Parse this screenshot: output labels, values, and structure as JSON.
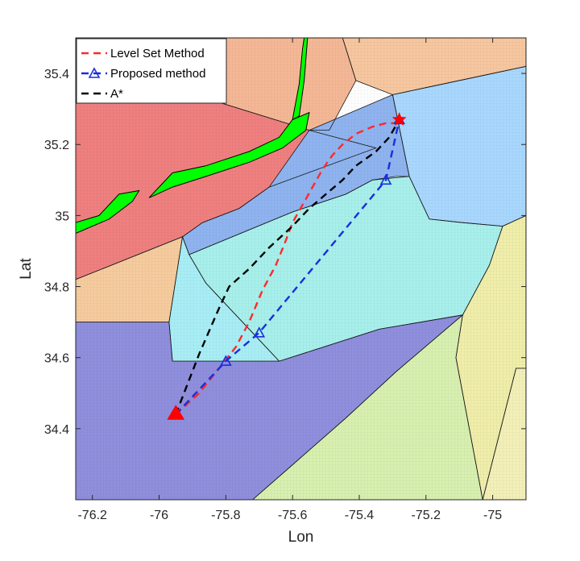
{
  "chart_data": {
    "type": "line",
    "title": "",
    "xlabel": "Lon",
    "ylabel": "Lat",
    "xlim": [
      -76.25,
      -74.9
    ],
    "ylim": [
      34.2,
      35.5
    ],
    "xticks": [
      -76.2,
      -76,
      -75.8,
      -75.6,
      -75.4,
      -75.2,
      -75
    ],
    "yticks": [
      34.4,
      34.6,
      34.8,
      35,
      35.2,
      35.4
    ],
    "xtick_labels": [
      "-76.2",
      "-76",
      "-75.8",
      "-75.6",
      "-75.4",
      "-75.2",
      "-75"
    ],
    "ytick_labels": [
      "34.4",
      "34.6",
      "34.8",
      "35",
      "35.2",
      "35.4"
    ],
    "legend_position": "top-left",
    "start": {
      "x": -75.95,
      "y": 34.44,
      "marker": "triangle",
      "color": "#ff0000"
    },
    "goal": {
      "x": -75.28,
      "y": 35.27,
      "marker": "star",
      "color": "#ff0000"
    },
    "series": [
      {
        "name": "Level Set Method",
        "color": "#ff2a2a",
        "marker": "none",
        "x": [
          -75.95,
          -75.88,
          -75.82,
          -75.77,
          -75.73,
          -75.69,
          -75.65,
          -75.62,
          -75.6,
          -75.57,
          -75.54,
          -75.51,
          -75.48,
          -75.45,
          -75.41,
          -75.36,
          -75.32,
          -75.29,
          -75.28
        ],
        "y": [
          34.44,
          34.5,
          34.57,
          34.63,
          34.7,
          34.79,
          34.86,
          34.93,
          34.98,
          35.03,
          35.08,
          35.13,
          35.17,
          35.2,
          35.23,
          35.25,
          35.26,
          35.26,
          35.27
        ]
      },
      {
        "name": "Proposed method",
        "color": "#1a2edb",
        "marker": "triangle",
        "x": [
          -75.95,
          -75.8,
          -75.7,
          -75.32,
          -75.28
        ],
        "y": [
          34.44,
          34.59,
          34.67,
          35.1,
          35.27
        ]
      },
      {
        "name": "A*",
        "color": "#000000",
        "marker": "none",
        "x": [
          -75.95,
          -75.88,
          -75.82,
          -75.79,
          -75.73,
          -75.67,
          -75.6,
          -75.55,
          -75.5,
          -75.45,
          -75.41,
          -75.38,
          -75.35,
          -75.31,
          -75.28
        ],
        "y": [
          34.44,
          34.61,
          34.74,
          34.8,
          34.85,
          34.91,
          34.97,
          35.02,
          35.06,
          35.1,
          35.14,
          35.16,
          35.18,
          35.22,
          35.27
        ]
      }
    ],
    "regions": [
      {
        "color": "#f08080",
        "points": [
          [
            -76.25,
            35.5
          ],
          [
            -75.88,
            35.5
          ],
          [
            -75.86,
            35.33
          ],
          [
            -75.55,
            35.24
          ],
          [
            -75.35,
            35.19
          ],
          [
            -75.67,
            35.08
          ],
          [
            -75.76,
            35.02
          ],
          [
            -75.87,
            34.98
          ],
          [
            -75.93,
            34.94
          ],
          [
            -76.25,
            34.82
          ]
        ]
      },
      {
        "color": "#f5b896",
        "points": [
          [
            -75.88,
            35.5
          ],
          [
            -75.45,
            35.5
          ],
          [
            -75.41,
            35.38
          ],
          [
            -75.49,
            35.24
          ],
          [
            -75.55,
            35.24
          ],
          [
            -75.86,
            35.33
          ]
        ]
      },
      {
        "color": "#f7c7a0",
        "points": [
          [
            -75.45,
            35.5
          ],
          [
            -74.9,
            35.5
          ],
          [
            -74.9,
            35.42
          ],
          [
            -75.2,
            35.36
          ],
          [
            -75.3,
            35.34
          ],
          [
            -75.41,
            35.38
          ]
        ]
      },
      {
        "color": "#f6cc9e",
        "points": [
          [
            -76.25,
            34.82
          ],
          [
            -75.93,
            34.94
          ],
          [
            -75.97,
            34.7
          ],
          [
            -76.25,
            34.7
          ]
        ]
      },
      {
        "color": "#8fb4f0",
        "points": [
          [
            -75.3,
            35.34
          ],
          [
            -75.55,
            35.24
          ],
          [
            -75.67,
            35.08
          ],
          [
            -75.76,
            35.02
          ],
          [
            -75.87,
            34.98
          ],
          [
            -75.93,
            34.94
          ],
          [
            -75.91,
            34.89
          ],
          [
            -75.6,
            35.01
          ],
          [
            -75.44,
            35.06
          ],
          [
            -75.36,
            35.1
          ],
          [
            -75.29,
            35.11
          ],
          [
            -75.25,
            35.11
          ]
        ]
      },
      {
        "color": "#a9d8ff",
        "points": [
          [
            -74.9,
            35.42
          ],
          [
            -75.2,
            35.36
          ],
          [
            -75.3,
            35.34
          ],
          [
            -75.25,
            35.11
          ],
          [
            -75.19,
            34.99
          ],
          [
            -75.09,
            34.98
          ],
          [
            -74.97,
            34.97
          ],
          [
            -74.9,
            35.0
          ]
        ]
      },
      {
        "color": "#a8f0ec",
        "points": [
          [
            -75.25,
            35.11
          ],
          [
            -75.36,
            35.1
          ],
          [
            -75.44,
            35.06
          ],
          [
            -75.6,
            35.01
          ],
          [
            -75.91,
            34.89
          ],
          [
            -75.86,
            34.81
          ],
          [
            -75.81,
            34.76
          ],
          [
            -75.72,
            34.67
          ],
          [
            -75.64,
            34.59
          ],
          [
            -75.54,
            34.62
          ],
          [
            -75.34,
            34.68
          ],
          [
            -75.09,
            34.72
          ],
          [
            -75.01,
            34.86
          ],
          [
            -74.97,
            34.97
          ],
          [
            -75.09,
            34.98
          ],
          [
            -75.19,
            34.99
          ]
        ]
      },
      {
        "color": "#a9eef6",
        "points": [
          [
            -75.93,
            34.94
          ],
          [
            -75.91,
            34.89
          ],
          [
            -75.86,
            34.81
          ],
          [
            -75.81,
            34.76
          ],
          [
            -75.72,
            34.67
          ],
          [
            -75.64,
            34.59
          ],
          [
            -75.74,
            34.59
          ],
          [
            -75.85,
            34.59
          ],
          [
            -75.96,
            34.59
          ],
          [
            -75.97,
            34.7
          ]
        ]
      },
      {
        "color": "#8f8fde",
        "points": [
          [
            -76.25,
            34.7
          ],
          [
            -75.97,
            34.7
          ],
          [
            -75.96,
            34.59
          ],
          [
            -75.85,
            34.59
          ],
          [
            -75.74,
            34.59
          ],
          [
            -75.64,
            34.59
          ],
          [
            -75.54,
            34.62
          ],
          [
            -75.34,
            34.68
          ],
          [
            -75.09,
            34.72
          ],
          [
            -75.29,
            34.56
          ],
          [
            -75.44,
            34.43
          ],
          [
            -75.61,
            34.29
          ],
          [
            -75.72,
            34.2
          ],
          [
            -76.25,
            34.2
          ]
        ]
      },
      {
        "color": "#d8f0b0",
        "points": [
          [
            -75.72,
            34.2
          ],
          [
            -75.61,
            34.29
          ],
          [
            -75.44,
            34.43
          ],
          [
            -75.29,
            34.56
          ],
          [
            -75.09,
            34.72
          ],
          [
            -75.11,
            34.6
          ],
          [
            -75.03,
            34.2
          ]
        ]
      },
      {
        "color": "#f0eeaa",
        "points": [
          [
            -75.09,
            34.72
          ],
          [
            -75.01,
            34.86
          ],
          [
            -74.97,
            34.97
          ],
          [
            -74.9,
            35.0
          ],
          [
            -74.9,
            34.57
          ],
          [
            -74.93,
            34.57
          ],
          [
            -75.03,
            34.2
          ],
          [
            -75.11,
            34.6
          ]
        ]
      },
      {
        "color": "#f3f0b8",
        "points": [
          [
            -74.93,
            34.57
          ],
          [
            -74.9,
            34.57
          ],
          [
            -74.9,
            34.2
          ],
          [
            -75.03,
            34.2
          ]
        ]
      }
    ],
    "land": [
      {
        "color": "#00ff00",
        "points": [
          [
            -76.25,
            34.98
          ],
          [
            -76.18,
            35.0
          ],
          [
            -76.12,
            35.06
          ],
          [
            -76.06,
            35.07
          ],
          [
            -76.08,
            35.04
          ],
          [
            -76.15,
            34.99
          ],
          [
            -76.25,
            34.95
          ]
        ]
      },
      {
        "color": "#00ff00",
        "points": [
          [
            -76.01,
            35.07
          ],
          [
            -75.96,
            35.12
          ],
          [
            -75.86,
            35.14
          ],
          [
            -75.73,
            35.18
          ],
          [
            -75.64,
            35.22
          ],
          [
            -75.6,
            35.27
          ],
          [
            -75.55,
            35.29
          ],
          [
            -75.56,
            35.24
          ],
          [
            -75.63,
            35.19
          ],
          [
            -75.73,
            35.15
          ],
          [
            -75.86,
            35.11
          ],
          [
            -75.96,
            35.08
          ],
          [
            -76.03,
            35.05
          ]
        ]
      },
      {
        "color": "#00ff00",
        "points": [
          [
            -75.6,
            35.27
          ],
          [
            -75.58,
            35.37
          ],
          [
            -75.57,
            35.47
          ],
          [
            -75.565,
            35.5
          ],
          [
            -75.555,
            35.5
          ],
          [
            -75.565,
            35.38
          ],
          [
            -75.58,
            35.28
          ]
        ]
      }
    ]
  }
}
